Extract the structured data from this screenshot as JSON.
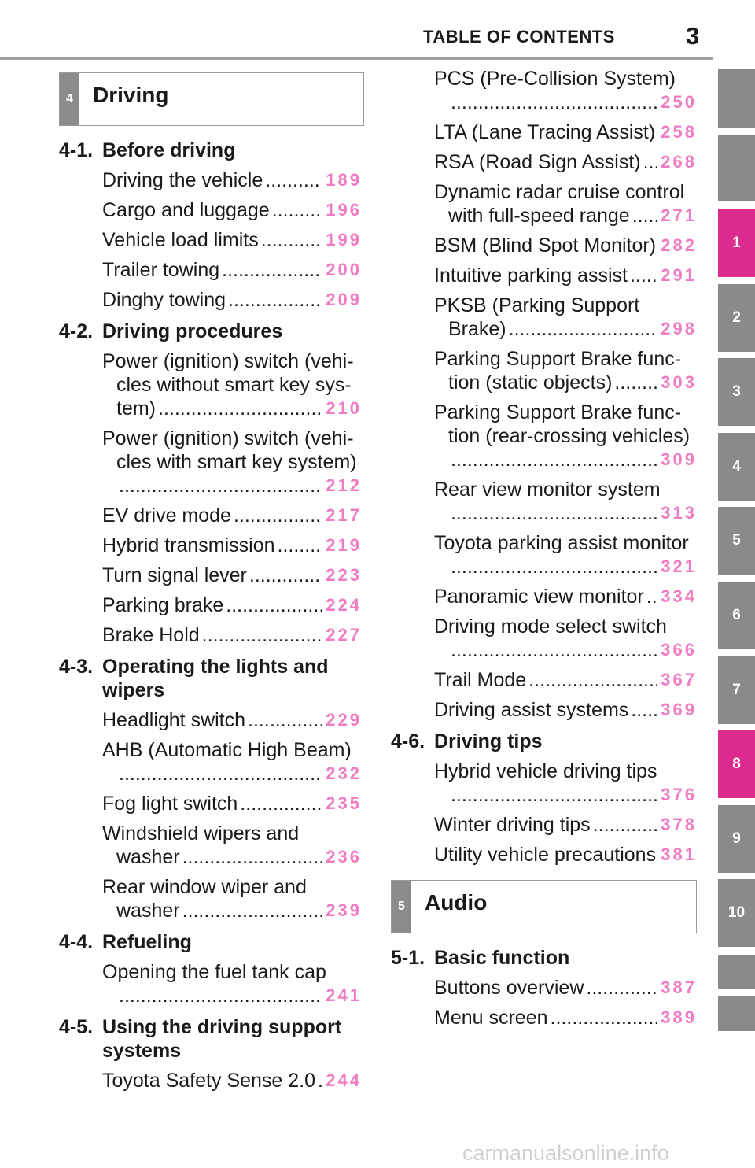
{
  "header": {
    "title": "TABLE OF CONTENTS",
    "page_number": "3"
  },
  "tabs": [
    {
      "label": "1",
      "color": "#dc2a8e"
    },
    {
      "label": "2",
      "color": "#8a8a8a"
    },
    {
      "label": "3",
      "color": "#8a8a8a"
    },
    {
      "label": "4",
      "color": "#8a8a8a"
    },
    {
      "label": "5",
      "color": "#8a8a8a"
    },
    {
      "label": "6",
      "color": "#8a8a8a"
    },
    {
      "label": "7",
      "color": "#8a8a8a"
    },
    {
      "label": "8",
      "color": "#dc2a8e"
    },
    {
      "label": "9",
      "color": "#8a8a8a"
    },
    {
      "label": "10",
      "color": "#8a8a8a"
    }
  ],
  "columns": [
    [
      {
        "chapter_number": "4",
        "chapter_title": "Driving"
      },
      {
        "section_number": "4-1.",
        "section_title": [
          "Before driving"
        ]
      },
      {
        "title": [
          "Driving the vehicle"
        ],
        "page": "189"
      },
      {
        "title": [
          "Cargo and luggage"
        ],
        "page": "196"
      },
      {
        "title": [
          "Vehicle load limits"
        ],
        "page": "199"
      },
      {
        "title": [
          "Trailer towing"
        ],
        "page": "200"
      },
      {
        "title": [
          "Dinghy towing"
        ],
        "page": "209"
      },
      {
        "section_number": "4-2.",
        "section_title": [
          "Driving procedures"
        ]
      },
      {
        "title": [
          "Power (ignition) switch (vehi-",
          "cles without smart key sys-",
          "tem)"
        ],
        "page": "210"
      },
      {
        "title": [
          "Power (ignition) switch (vehi-",
          "cles with smart key system)"
        ],
        "page": "212"
      },
      {
        "title": [
          "EV drive mode"
        ],
        "page": "217"
      },
      {
        "title": [
          "Hybrid transmission"
        ],
        "page": "219"
      },
      {
        "title": [
          "Turn signal lever"
        ],
        "page": "223"
      },
      {
        "title": [
          "Parking brake"
        ],
        "page": "224"
      },
      {
        "title": [
          "Brake Hold"
        ],
        "page": "227"
      },
      {
        "section_number": "4-3.",
        "section_title": [
          "Operating the lights and",
          "wipers"
        ]
      },
      {
        "title": [
          "Headlight switch"
        ],
        "page": "229"
      },
      {
        "title": [
          "AHB (Automatic High Beam)"
        ],
        "page": "232"
      },
      {
        "title": [
          "Fog light switch"
        ],
        "page": "235"
      },
      {
        "title": [
          "Windshield wipers and",
          "washer"
        ],
        "page": "236"
      },
      {
        "title": [
          "Rear window wiper and",
          "washer"
        ],
        "page": "239"
      },
      {
        "section_number": "4-4.",
        "section_title": [
          "Refueling"
        ]
      },
      {
        "title": [
          "Opening the fuel tank cap"
        ],
        "page": "241"
      },
      {
        "section_number": "4-5.",
        "section_title": [
          "Using the driving support",
          "systems"
        ]
      },
      {
        "title": [
          "Toyota Safety Sense 2.0"
        ],
        "page": "244"
      }
    ],
    [
      {
        "title": [
          "PCS (Pre-Collision System)"
        ],
        "page": "250"
      },
      {
        "title": [
          "LTA (Lane Tracing Assist)"
        ],
        "page": "258"
      },
      {
        "title": [
          "RSA (Road Sign Assist)"
        ],
        "page": "268"
      },
      {
        "title": [
          "Dynamic radar cruise control",
          "with full-speed range"
        ],
        "page": "271"
      },
      {
        "title": [
          "BSM (Blind Spot Monitor)"
        ],
        "page": "282"
      },
      {
        "title": [
          "Intuitive parking assist"
        ],
        "page": "291"
      },
      {
        "title": [
          "PKSB (Parking Support",
          "Brake)"
        ],
        "page": "298"
      },
      {
        "title": [
          "Parking Support Brake func-",
          "tion (static objects)"
        ],
        "page": "303"
      },
      {
        "title": [
          "Parking Support Brake func-",
          "tion (rear-crossing vehicles)"
        ],
        "page": "309"
      },
      {
        "title": [
          "Rear view monitor system"
        ],
        "page": "313"
      },
      {
        "title": [
          "Toyota parking assist monitor"
        ],
        "page": "321"
      },
      {
        "title": [
          "Panoramic view monitor"
        ],
        "page": "334"
      },
      {
        "title": [
          "Driving mode select switch"
        ],
        "page": "366"
      },
      {
        "title": [
          "Trail Mode"
        ],
        "page": "367"
      },
      {
        "title": [
          "Driving assist systems"
        ],
        "page": "369"
      },
      {
        "section_number": "4-6.",
        "section_title": [
          "Driving tips"
        ]
      },
      {
        "title": [
          "Hybrid vehicle driving tips"
        ],
        "page": "376"
      },
      {
        "title": [
          "Winter driving tips"
        ],
        "page": "378"
      },
      {
        "title": [
          "Utility vehicle precautions"
        ],
        "page": "381"
      },
      {
        "chapter_number": "5",
        "chapter_title": "Audio"
      },
      {
        "section_number": "5-1.",
        "section_title": [
          "Basic function"
        ]
      },
      {
        "title": [
          "Buttons overview"
        ],
        "page": "387"
      },
      {
        "title": [
          "Menu screen"
        ],
        "page": "389"
      }
    ]
  ],
  "footer": {
    "watermark": "carmanualsonline.info"
  }
}
